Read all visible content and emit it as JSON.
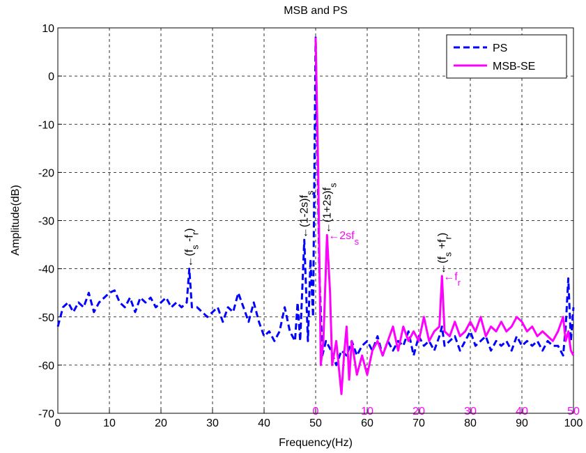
{
  "chart_data": {
    "type": "line",
    "title": "MSB and PS",
    "x_label": "Frequency(Hz)",
    "y_label": "Amplitude(dB)",
    "xlim": [
      0,
      100
    ],
    "xticks": [
      0,
      10,
      20,
      30,
      40,
      50,
      60,
      70,
      80,
      90,
      100
    ],
    "x2lim": [
      0,
      50
    ],
    "x2ticks": [
      0,
      10,
      20,
      30,
      40,
      50
    ],
    "x2_color": "#ff00ff",
    "ylim": [
      -70,
      10
    ],
    "yticks": [
      -70,
      -60,
      -50,
      -40,
      -30,
      -20,
      -10,
      0,
      10
    ],
    "grid": true,
    "legend": "top-right",
    "series": [
      {
        "name": "PS",
        "color": "#0000ff",
        "dashed": true,
        "x": [
          0,
          1,
          2,
          3,
          4,
          5,
          6,
          7,
          8,
          9,
          10,
          11,
          12,
          13,
          14,
          15,
          16,
          17,
          18,
          19,
          20,
          21,
          22,
          23,
          24,
          25,
          25.5,
          26,
          27,
          28,
          29,
          30,
          31,
          32,
          33,
          34,
          35,
          36,
          37,
          38,
          39,
          40,
          41,
          42,
          43,
          44,
          45,
          46,
          46.5,
          47,
          47.8,
          48.5,
          49,
          49.5,
          50,
          50.7,
          51.3,
          52,
          53,
          54,
          55,
          56,
          57,
          58,
          59,
          60,
          61,
          62,
          63,
          64,
          65,
          66,
          67,
          68,
          69,
          70,
          71,
          72,
          73,
          74,
          74.5,
          75,
          76,
          77,
          78,
          79,
          80,
          81,
          82,
          83,
          84,
          85,
          86,
          87,
          88,
          89,
          90,
          91,
          92,
          93,
          94,
          95,
          96,
          97,
          98,
          98.5,
          99,
          99.5,
          100
        ],
        "values": [
          -52,
          -48,
          -47,
          -49,
          -47,
          -48,
          -45,
          -49,
          -47,
          -46,
          -45,
          -44.5,
          -47,
          -48,
          -46,
          -49,
          -46,
          -47,
          -46,
          -48,
          -47,
          -46,
          -48,
          -47,
          -48,
          -47,
          -40,
          -48,
          -48,
          -49,
          -50,
          -49,
          -48,
          -51,
          -48,
          -49,
          -45,
          -48,
          -51,
          -47,
          -51,
          -54,
          -53,
          -55,
          -53,
          -48,
          -53,
          -55,
          -47,
          -55,
          -34,
          -55,
          -38,
          -50,
          8,
          -40,
          -58,
          -55,
          -57,
          -60,
          -57,
          -58,
          -55,
          -58,
          -56,
          -55,
          -57,
          -54,
          -58,
          -55,
          -57,
          -55,
          -56,
          -53,
          -58,
          -54,
          -56,
          -55,
          -57,
          -54,
          -52,
          -56,
          -55,
          -54,
          -57,
          -55,
          -53,
          -56,
          -55,
          -54,
          -57,
          -55,
          -56,
          -55,
          -57,
          -54,
          -56,
          -55,
          -56,
          -55,
          -57,
          -55,
          -56,
          -56,
          -58,
          -52,
          -42,
          -55,
          -48
        ]
      },
      {
        "name": "MSB-SE",
        "color": "#ff00ff",
        "dashed": false,
        "axis": "x2",
        "x": [
          0,
          0.5,
          1,
          1.5,
          2.2,
          2.8,
          3.2,
          4,
          5,
          5.5,
          6,
          6.5,
          7,
          8,
          9,
          10,
          11,
          12,
          13,
          14,
          15,
          16,
          17,
          18,
          19,
          20,
          21,
          22,
          23,
          24,
          24.5,
          25,
          26,
          27,
          28,
          29,
          30,
          31,
          32,
          33,
          34,
          35,
          36,
          37,
          38,
          39,
          40,
          41,
          42,
          43,
          44,
          45,
          46,
          47,
          48,
          48.5,
          49,
          49.5,
          50
        ],
        "values": [
          8,
          -20,
          -60,
          -55,
          -33,
          -45,
          -60,
          -55,
          -66,
          -58,
          -52,
          -63,
          -55,
          -62,
          -58,
          -62,
          -57,
          -55,
          -58,
          -55,
          -52,
          -57,
          -52,
          -55,
          -53,
          -55,
          -50,
          -55,
          -53,
          -52,
          -41.5,
          -53,
          -54,
          -51,
          -54,
          -53,
          -51,
          -53,
          -50,
          -54,
          -52,
          -53,
          -51,
          -53,
          -52,
          -50,
          -51,
          -53,
          -52,
          -54,
          -53,
          -54,
          -55,
          -53,
          -50,
          -55,
          -53,
          -57,
          -58
        ]
      }
    ],
    "annotations": [
      {
        "parts": [
          "←(f",
          "s",
          " -f",
          "r",
          ")"
        ],
        "x": 25.5,
        "y": -40,
        "orientation": "vertical",
        "color": "#000000"
      },
      {
        "parts": [
          "←(1-2s)f",
          "s"
        ],
        "x": 47.8,
        "y": -34,
        "orientation": "vertical",
        "color": "#000000"
      },
      {
        "parts": [
          "←(1+2s)f",
          "s"
        ],
        "x": 52.2,
        "y": -33,
        "orientation": "vertical",
        "color": "#000000"
      },
      {
        "parts": [
          "←(f",
          "s",
          " +f",
          "r",
          ")"
        ],
        "x": 74.5,
        "y": -41.5,
        "orientation": "vertical",
        "color": "#000000"
      },
      {
        "parts": [
          "←2sf",
          "s"
        ],
        "x": 52.2,
        "y": -33,
        "orientation": "horizontal",
        "color": "#ff00ff"
      },
      {
        "parts": [
          "←f",
          "r"
        ],
        "x": 74.5,
        "y": -41.5,
        "orientation": "horizontal",
        "color": "#ff00ff"
      }
    ]
  }
}
